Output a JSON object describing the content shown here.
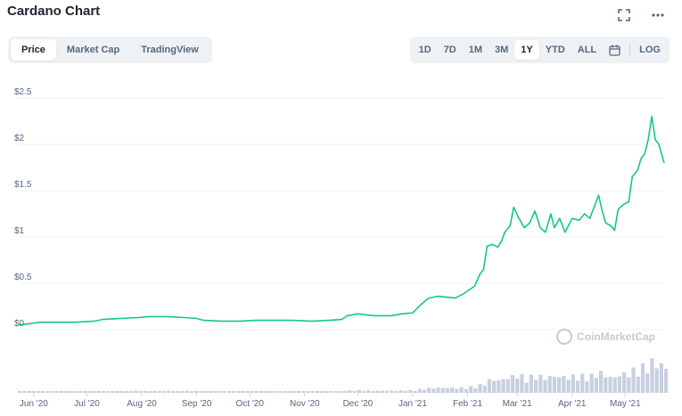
{
  "header": {
    "title": "Cardano Chart"
  },
  "icons": {
    "fullscreen": "fullscreen-icon",
    "more": "more-icon",
    "calendar": "calendar-icon"
  },
  "tabs": [
    {
      "label": "Price",
      "active": true
    },
    {
      "label": "Market Cap",
      "active": false
    },
    {
      "label": "TradingView",
      "active": false
    }
  ],
  "ranges": [
    {
      "label": "1D",
      "active": false
    },
    {
      "label": "7D",
      "active": false
    },
    {
      "label": "1M",
      "active": false
    },
    {
      "label": "3M",
      "active": false
    },
    {
      "label": "1Y",
      "active": true
    },
    {
      "label": "YTD",
      "active": false
    },
    {
      "label": "ALL",
      "active": false
    }
  ],
  "log_label": "LOG",
  "watermark": "CoinMarketCap",
  "colors": {
    "line": "#16c784",
    "volume": "#c8cfe0",
    "grid": "#eff2f5",
    "text": "#58667e"
  },
  "chart_data": {
    "type": "line",
    "ylim": [
      0,
      2.5
    ],
    "yticks": [
      {
        "value": 0,
        "label": "$0"
      },
      {
        "value": 0.5,
        "label": "$0.5"
      },
      {
        "value": 1,
        "label": "$1"
      },
      {
        "value": 1.5,
        "label": "$1.5"
      },
      {
        "value": 2,
        "label": "$2"
      },
      {
        "value": 2.5,
        "label": "$2.5"
      }
    ],
    "x_range": [
      "2020-05-23",
      "2021-05-23"
    ],
    "xticks": [
      {
        "date": "2020-06-01",
        "label": "Jun '20"
      },
      {
        "date": "2020-07-01",
        "label": "Jul '20"
      },
      {
        "date": "2020-08-01",
        "label": "Aug '20"
      },
      {
        "date": "2020-09-01",
        "label": "Sep '20"
      },
      {
        "date": "2020-10-01",
        "label": "Oct '20"
      },
      {
        "date": "2020-11-01",
        "label": "Nov '20"
      },
      {
        "date": "2020-12-01",
        "label": "Dec '20"
      },
      {
        "date": "2021-01-01",
        "label": "Jan '21"
      },
      {
        "date": "2021-02-01",
        "label": "Feb '21"
      },
      {
        "date": "2021-03-01",
        "label": "Mar '21"
      },
      {
        "date": "2021-04-01",
        "label": "Apr '21"
      },
      {
        "date": "2021-05-01",
        "label": "May '21"
      }
    ],
    "series": [
      {
        "values": [
          [
            "2020-05-23",
            0.05
          ],
          [
            "2020-05-28",
            0.06
          ],
          [
            "2020-06-05",
            0.08
          ],
          [
            "2020-06-15",
            0.08
          ],
          [
            "2020-06-25",
            0.08
          ],
          [
            "2020-07-05",
            0.09
          ],
          [
            "2020-07-10",
            0.11
          ],
          [
            "2020-07-20",
            0.12
          ],
          [
            "2020-07-30",
            0.13
          ],
          [
            "2020-08-05",
            0.14
          ],
          [
            "2020-08-15",
            0.14
          ],
          [
            "2020-08-25",
            0.13
          ],
          [
            "2020-09-01",
            0.12
          ],
          [
            "2020-09-05",
            0.1
          ],
          [
            "2020-09-15",
            0.09
          ],
          [
            "2020-09-25",
            0.09
          ],
          [
            "2020-10-05",
            0.1
          ],
          [
            "2020-10-15",
            0.1
          ],
          [
            "2020-10-25",
            0.1
          ],
          [
            "2020-11-05",
            0.09
          ],
          [
            "2020-11-15",
            0.1
          ],
          [
            "2020-11-22",
            0.11
          ],
          [
            "2020-11-25",
            0.15
          ],
          [
            "2020-12-01",
            0.17
          ],
          [
            "2020-12-10",
            0.15
          ],
          [
            "2020-12-20",
            0.15
          ],
          [
            "2020-12-26",
            0.17
          ],
          [
            "2021-01-01",
            0.18
          ],
          [
            "2021-01-05",
            0.26
          ],
          [
            "2021-01-10",
            0.34
          ],
          [
            "2021-01-15",
            0.36
          ],
          [
            "2021-01-20",
            0.35
          ],
          [
            "2021-01-25",
            0.34
          ],
          [
            "2021-01-30",
            0.39
          ],
          [
            "2021-02-05",
            0.47
          ],
          [
            "2021-02-08",
            0.6
          ],
          [
            "2021-02-10",
            0.65
          ],
          [
            "2021-02-12",
            0.9
          ],
          [
            "2021-02-15",
            0.92
          ],
          [
            "2021-02-18",
            0.89
          ],
          [
            "2021-02-20",
            0.95
          ],
          [
            "2021-02-22",
            1.05
          ],
          [
            "2021-02-25",
            1.12
          ],
          [
            "2021-02-27",
            1.32
          ],
          [
            "2021-03-02",
            1.2
          ],
          [
            "2021-03-05",
            1.1
          ],
          [
            "2021-03-08",
            1.15
          ],
          [
            "2021-03-11",
            1.28
          ],
          [
            "2021-03-14",
            1.1
          ],
          [
            "2021-03-17",
            1.05
          ],
          [
            "2021-03-20",
            1.25
          ],
          [
            "2021-03-22",
            1.1
          ],
          [
            "2021-03-25",
            1.2
          ],
          [
            "2021-03-28",
            1.05
          ],
          [
            "2021-04-01",
            1.2
          ],
          [
            "2021-04-05",
            1.18
          ],
          [
            "2021-04-08",
            1.25
          ],
          [
            "2021-04-11",
            1.2
          ],
          [
            "2021-04-14",
            1.35
          ],
          [
            "2021-04-16",
            1.45
          ],
          [
            "2021-04-18",
            1.28
          ],
          [
            "2021-04-20",
            1.15
          ],
          [
            "2021-04-23",
            1.12
          ],
          [
            "2021-04-25",
            1.07
          ],
          [
            "2021-04-27",
            1.3
          ],
          [
            "2021-04-30",
            1.35
          ],
          [
            "2021-05-03",
            1.38
          ],
          [
            "2021-05-05",
            1.65
          ],
          [
            "2021-05-08",
            1.72
          ],
          [
            "2021-05-10",
            1.85
          ],
          [
            "2021-05-12",
            1.9
          ],
          [
            "2021-05-14",
            2.05
          ],
          [
            "2021-05-16",
            2.3
          ],
          [
            "2021-05-18",
            2.05
          ],
          [
            "2021-05-20",
            2.0
          ],
          [
            "2021-05-23",
            1.8
          ]
        ]
      }
    ]
  }
}
